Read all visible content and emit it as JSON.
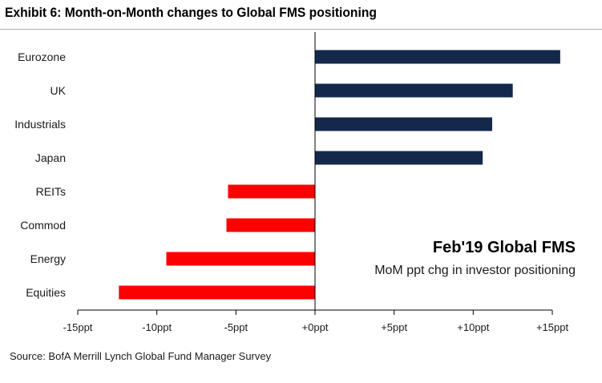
{
  "header": {
    "title": "Exhibit 6: Month-on-Month changes to Global FMS positioning"
  },
  "chart_data": {
    "type": "bar",
    "orientation": "horizontal",
    "categories": [
      "Eurozone",
      "UK",
      "Industrials",
      "Japan",
      "REITs",
      "Commod",
      "Energy",
      "Equities"
    ],
    "values": [
      15.5,
      12.5,
      11.2,
      10.6,
      -5.5,
      -5.6,
      -9.4,
      -12.4
    ],
    "xlim": [
      -15,
      15
    ],
    "x_ticks": [
      -15,
      -10,
      -5,
      0,
      5,
      10,
      15
    ],
    "x_tick_labels": [
      "-15ppt",
      "-10ppt",
      "-5ppt",
      "+0ppt",
      "+5ppt",
      "+10ppt",
      "+15ppt"
    ],
    "colors": {
      "positive": "#14284b",
      "negative": "#ff0000"
    },
    "annotation": {
      "title": "Feb'19 Global FMS",
      "subtitle": "MoM ppt chg in investor positioning"
    },
    "grid": false,
    "legend": "none"
  },
  "footer": {
    "source": "Source: BofA Merrill Lynch Global Fund Manager Survey"
  }
}
